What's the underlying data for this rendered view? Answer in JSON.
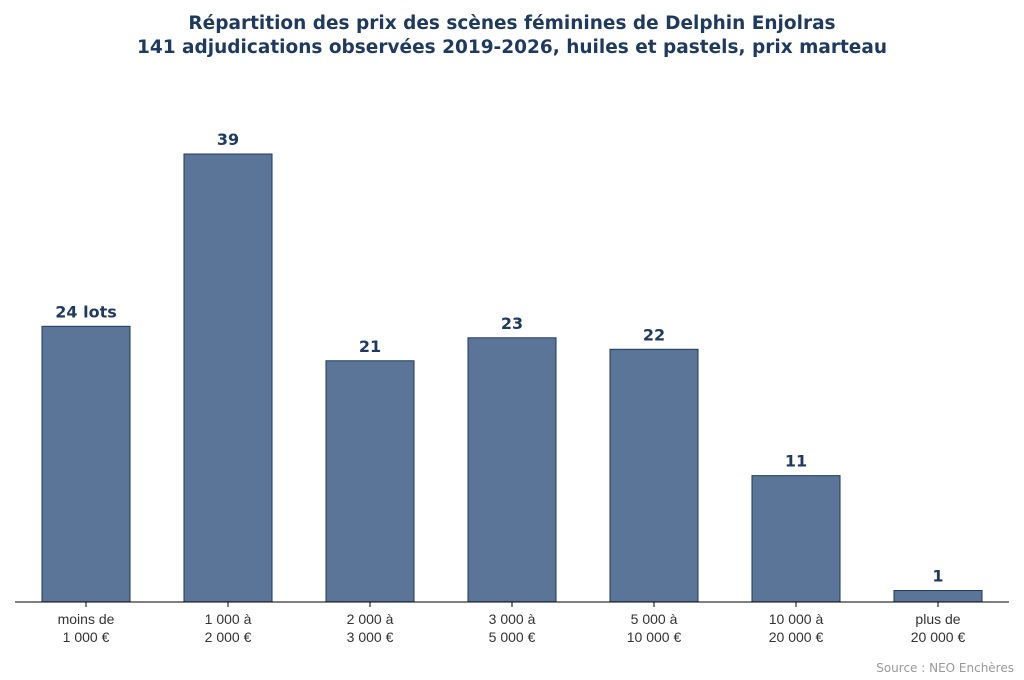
{
  "chart_data": {
    "type": "bar",
    "title": "Répartition des prix des scènes féminines de Delphin Enjolras",
    "subtitle": "141 adjudications observées 2019-2026, huiles et pastels, prix marteau",
    "categories": [
      [
        "moins de",
        "1 000 €"
      ],
      [
        "1 000 à",
        "2 000 €"
      ],
      [
        "2 000 à",
        "3 000 €"
      ],
      [
        "3 000 à",
        "5 000 €"
      ],
      [
        "5 000 à",
        "10 000 €"
      ],
      [
        "10 000 à",
        "20 000 €"
      ],
      [
        "plus de",
        "20 000 €"
      ]
    ],
    "values": [
      24,
      39,
      21,
      23,
      22,
      11,
      1
    ],
    "data_labels": [
      "24 lots",
      "39",
      "21",
      "23",
      "22",
      "11",
      "1"
    ],
    "ylim": [
      0,
      39
    ],
    "grid": false,
    "colors": {
      "bar": "#5b7598",
      "bar_edge": "#1f3a5f",
      "label": "#1f3a5f",
      "axis": "#000000"
    }
  },
  "source": "Source : NEO Enchères"
}
